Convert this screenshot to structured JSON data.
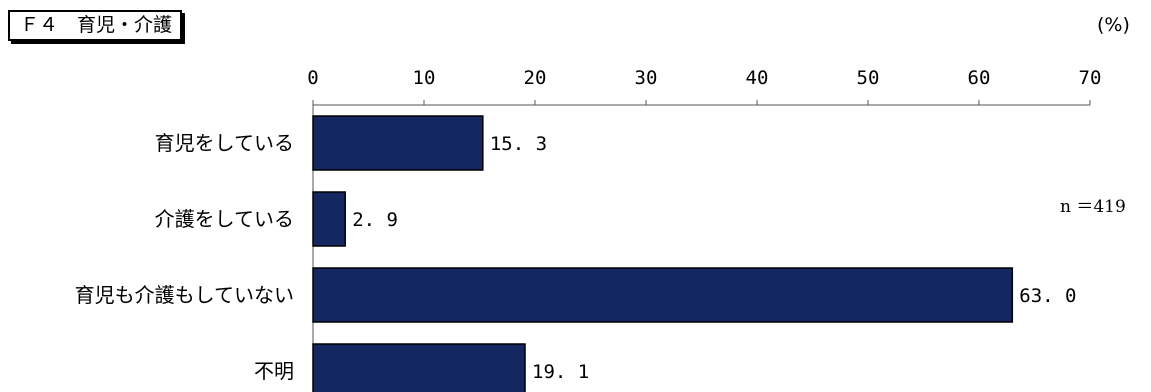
{
  "header": {
    "title": "Ｆ４　育児・介護",
    "unit": "(%)"
  },
  "note": {
    "n": "n ＝419"
  },
  "chart_data": {
    "type": "bar",
    "orientation": "horizontal",
    "categories": [
      "育児をしている",
      "介護をしている",
      "育児も介護もしていない",
      "不明"
    ],
    "values": [
      15.3,
      2.9,
      63.0,
      19.1
    ],
    "value_labels": [
      "15. 3",
      "2. 9",
      "63. 0",
      "19. 1"
    ],
    "xlim": [
      0,
      70
    ],
    "ticks": [
      0,
      10,
      20,
      30,
      40,
      50,
      60,
      70
    ],
    "axis_position": "top",
    "grid": false,
    "bar_color": "#152760",
    "bar_border_color": "#000000"
  }
}
